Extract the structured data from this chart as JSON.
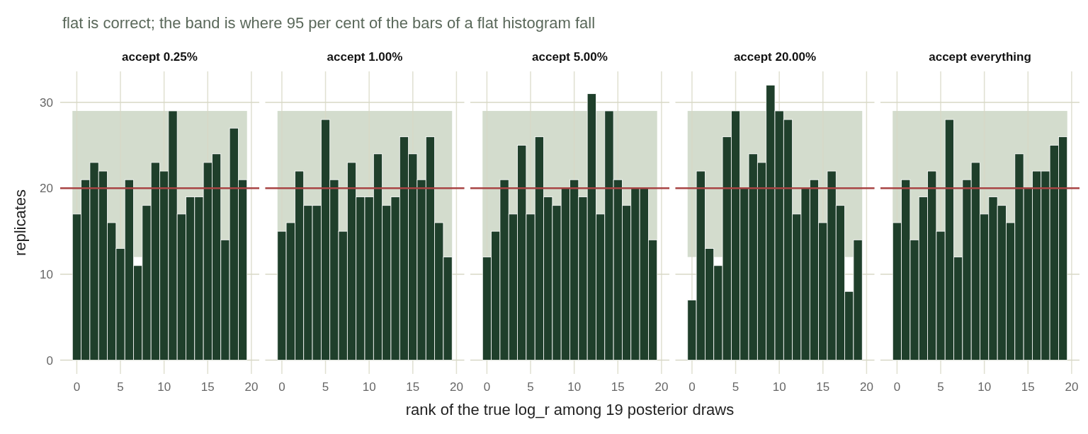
{
  "chart_data": [
    {
      "type": "histogram",
      "title": "accept 0.25%",
      "subtitle": "flat is correct; the band is where 95 per cent of the bars of a flat histogram fall",
      "ylabel": "replicates",
      "bins": [
        -0.5,
        0.5,
        1.5,
        2.5,
        3.5,
        4.5,
        5.5,
        6.5,
        7.5,
        8.5,
        9.5,
        10.5,
        11.5,
        12.5,
        13.5,
        14.5,
        15.5,
        16.5,
        17.5,
        18.5,
        19.5
      ],
      "values": [
        17,
        21,
        23,
        22,
        16,
        13,
        21,
        11,
        18,
        23,
        22,
        29,
        17,
        19,
        19,
        23,
        24,
        14,
        27,
        21
      ],
      "color": "#1f3f2b",
      "xlim": [
        -1.9,
        20.9
      ],
      "ylim": [
        -1.6,
        33.6
      ],
      "xticks": [
        0,
        5,
        10,
        15,
        20
      ],
      "yticks": [
        0,
        10,
        20,
        30
      ],
      "grid": true,
      "bands": [
        {
          "axis": "y",
          "from": 12,
          "to": 29,
          "color": "#d3dccd"
        }
      ],
      "ref_lines": [
        {
          "axis": "y",
          "value": 20,
          "color": "#a84444"
        }
      ]
    },
    {
      "type": "histogram",
      "title": "accept 1.00%",
      "bins": [
        -0.5,
        0.5,
        1.5,
        2.5,
        3.5,
        4.5,
        5.5,
        6.5,
        7.5,
        8.5,
        9.5,
        10.5,
        11.5,
        12.5,
        13.5,
        14.5,
        15.5,
        16.5,
        17.5,
        18.5,
        19.5
      ],
      "values": [
        15,
        16,
        22,
        18,
        18,
        28,
        21,
        15,
        23,
        19,
        19,
        24,
        18,
        19,
        26,
        24,
        21,
        26,
        16,
        12
      ],
      "color": "#1f3f2b",
      "xlim": [
        -1.9,
        20.9
      ],
      "ylim": [
        -1.6,
        33.6
      ],
      "xticks": [
        0,
        5,
        10,
        15,
        20
      ],
      "yticks": [
        0,
        10,
        20,
        30
      ],
      "grid": true,
      "tick_labels": "x",
      "bands": [
        {
          "axis": "y",
          "from": 12,
          "to": 29,
          "color": "#d3dccd"
        }
      ],
      "ref_lines": [
        {
          "axis": "y",
          "value": 20,
          "color": "#a84444"
        }
      ]
    },
    {
      "type": "histogram",
      "title": "accept 5.00%",
      "xlabel": "rank of the true log_r among 19 posterior draws",
      "bins": [
        -0.5,
        0.5,
        1.5,
        2.5,
        3.5,
        4.5,
        5.5,
        6.5,
        7.5,
        8.5,
        9.5,
        10.5,
        11.5,
        12.5,
        13.5,
        14.5,
        15.5,
        16.5,
        17.5,
        18.5,
        19.5
      ],
      "values": [
        12,
        15,
        21,
        17,
        25,
        17,
        26,
        19,
        18,
        20,
        21,
        19,
        31,
        17,
        29,
        21,
        18,
        20,
        20,
        14
      ],
      "color": "#1f3f2b",
      "xlim": [
        -1.9,
        20.9
      ],
      "ylim": [
        -1.6,
        33.6
      ],
      "xticks": [
        0,
        5,
        10,
        15,
        20
      ],
      "yticks": [
        0,
        10,
        20,
        30
      ],
      "grid": true,
      "tick_labels": "x",
      "bands": [
        {
          "axis": "y",
          "from": 12,
          "to": 29,
          "color": "#d3dccd"
        }
      ],
      "ref_lines": [
        {
          "axis": "y",
          "value": 20,
          "color": "#a84444"
        }
      ]
    },
    {
      "type": "histogram",
      "title": "accept 20.00%",
      "bins": [
        -0.5,
        0.5,
        1.5,
        2.5,
        3.5,
        4.5,
        5.5,
        6.5,
        7.5,
        8.5,
        9.5,
        10.5,
        11.5,
        12.5,
        13.5,
        14.5,
        15.5,
        16.5,
        17.5,
        18.5,
        19.5
      ],
      "values": [
        7,
        22,
        13,
        11,
        26,
        29,
        20,
        24,
        23,
        32,
        29,
        28,
        17,
        20,
        21,
        16,
        22,
        18,
        8,
        14
      ],
      "color": "#1f3f2b",
      "xlim": [
        -1.9,
        20.9
      ],
      "ylim": [
        -1.6,
        33.6
      ],
      "xticks": [
        0,
        5,
        10,
        15,
        20
      ],
      "yticks": [
        0,
        10,
        20,
        30
      ],
      "grid": true,
      "tick_labels": "x",
      "bands": [
        {
          "axis": "y",
          "from": 12,
          "to": 29,
          "color": "#d3dccd"
        }
      ],
      "ref_lines": [
        {
          "axis": "y",
          "value": 20,
          "color": "#a84444"
        }
      ]
    },
    {
      "type": "histogram",
      "title": "accept everything",
      "bins": [
        -0.5,
        0.5,
        1.5,
        2.5,
        3.5,
        4.5,
        5.5,
        6.5,
        7.5,
        8.5,
        9.5,
        10.5,
        11.5,
        12.5,
        13.5,
        14.5,
        15.5,
        16.5,
        17.5,
        18.5,
        19.5
      ],
      "values": [
        16,
        21,
        14,
        19,
        22,
        15,
        28,
        12,
        21,
        23,
        17,
        19,
        18,
        16,
        24,
        20,
        22,
        22,
        25,
        26
      ],
      "color": "#1f3f2b",
      "xlim": [
        -1.9,
        20.9
      ],
      "ylim": [
        -1.6,
        33.6
      ],
      "xticks": [
        0,
        5,
        10,
        15,
        20
      ],
      "yticks": [
        0,
        10,
        20,
        30
      ],
      "grid": true,
      "tick_labels": "x",
      "bands": [
        {
          "axis": "y",
          "from": 12,
          "to": 29,
          "color": "#d3dccd"
        }
      ],
      "ref_lines": [
        {
          "axis": "y",
          "value": 20,
          "color": "#a84444"
        }
      ]
    }
  ]
}
